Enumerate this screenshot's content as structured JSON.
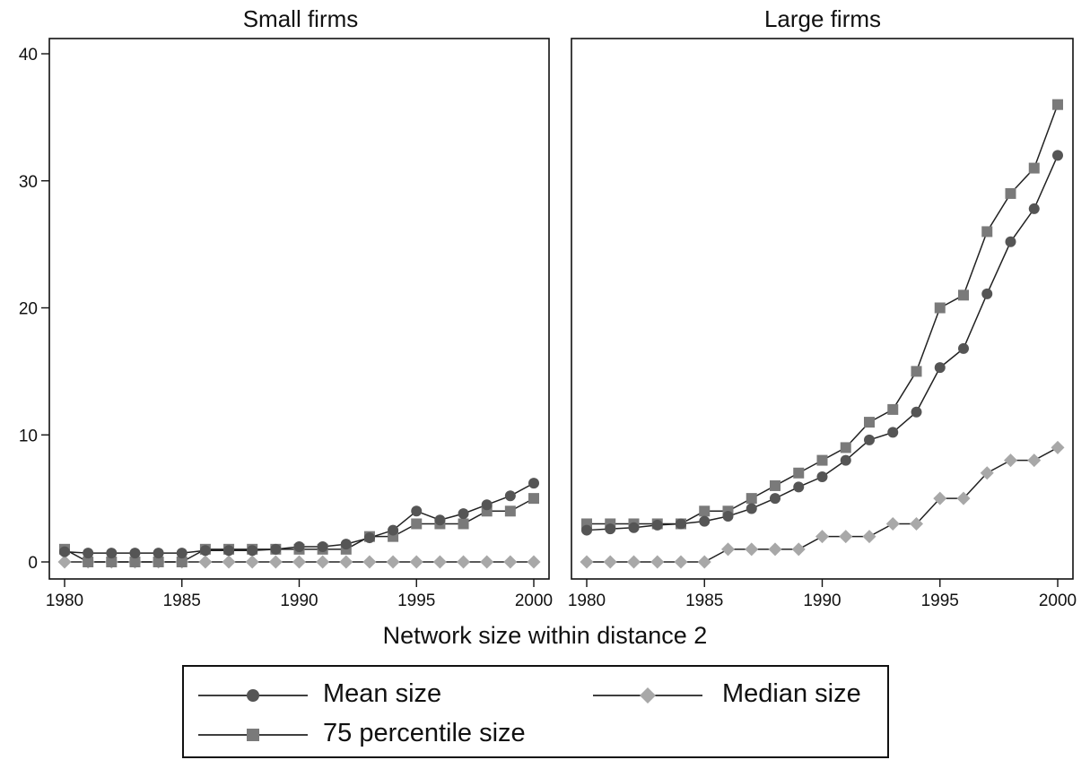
{
  "chart_data": {
    "type": "line",
    "xlabel": "Network size within distance 2",
    "x": [
      1980,
      1981,
      1982,
      1983,
      1984,
      1985,
      1986,
      1987,
      1988,
      1989,
      1990,
      1991,
      1992,
      1993,
      1994,
      1995,
      1996,
      1997,
      1998,
      1999,
      2000
    ],
    "xticks": [
      1980,
      1985,
      1990,
      1995,
      2000
    ],
    "ylim": [
      0,
      40
    ],
    "yticks": [
      0,
      10,
      20,
      30,
      40
    ],
    "grid": false,
    "legend_position": "bottom",
    "colors": {
      "mean": "#555555",
      "p75": "#7a7a7a",
      "median": "#a8a8a8",
      "line": "#222222"
    },
    "panels": [
      {
        "title": "Small firms",
        "series": [
          {
            "name": "Mean size",
            "marker": "circle",
            "values": [
              0.8,
              0.7,
              0.7,
              0.7,
              0.7,
              0.7,
              0.9,
              0.9,
              0.9,
              1.0,
              1.2,
              1.2,
              1.4,
              1.9,
              2.5,
              4.0,
              3.3,
              3.8,
              4.5,
              5.2,
              6.2
            ]
          },
          {
            "name": "75 percentile size",
            "marker": "square",
            "values": [
              1,
              0,
              0,
              0,
              0,
              0,
              1,
              1,
              1,
              1,
              1,
              1,
              1,
              2,
              2,
              3,
              3,
              3,
              4,
              4,
              5
            ]
          },
          {
            "name": "Median size",
            "marker": "diamond",
            "values": [
              0,
              0,
              0,
              0,
              0,
              0,
              0,
              0,
              0,
              0,
              0,
              0,
              0,
              0,
              0,
              0,
              0,
              0,
              0,
              0,
              0
            ]
          }
        ]
      },
      {
        "title": "Large firms",
        "series": [
          {
            "name": "Mean size",
            "marker": "circle",
            "values": [
              2.5,
              2.6,
              2.7,
              2.9,
              3.0,
              3.2,
              3.6,
              4.2,
              5.0,
              5.9,
              6.7,
              8.0,
              9.6,
              10.2,
              11.8,
              15.3,
              16.8,
              21.1,
              25.2,
              27.8,
              32.0
            ]
          },
          {
            "name": "75 percentile size",
            "marker": "square",
            "values": [
              3,
              3,
              3,
              3,
              3,
              4,
              4,
              5,
              6,
              7,
              8,
              9,
              11,
              12,
              15,
              20,
              21,
              26,
              29,
              31,
              36
            ]
          },
          {
            "name": "Median size",
            "marker": "diamond",
            "values": [
              0,
              0,
              0,
              0,
              0,
              0,
              1,
              1,
              1,
              1,
              2,
              2,
              2,
              3,
              3,
              5,
              5,
              7,
              8,
              8,
              9
            ]
          }
        ]
      }
    ]
  },
  "legend": {
    "mean_label": "Mean size",
    "median_label": "Median size",
    "p75_label": "75 percentile size"
  }
}
